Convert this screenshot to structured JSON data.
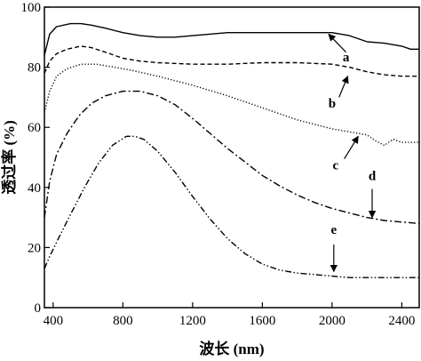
{
  "chart_data": {
    "type": "line",
    "title": "",
    "xlabel": "波长 (nm)",
    "ylabel": "透过率 (%)",
    "xlim": [
      350,
      2500
    ],
    "ylim": [
      0,
      100
    ],
    "x_ticks": [
      400,
      800,
      1200,
      1600,
      2000,
      2400
    ],
    "y_ticks": [
      0,
      20,
      40,
      60,
      80,
      100
    ],
    "x_tick_labels": [
      "400",
      "800",
      "1200",
      "1600",
      "2000",
      "2400"
    ],
    "y_tick_labels": [
      "0",
      "20",
      "40",
      "60",
      "80",
      "100"
    ],
    "grid": false,
    "legend": "none",
    "series": [
      {
        "name": "a",
        "style": "solid",
        "x": [
          350,
          380,
          420,
          500,
          560,
          620,
          700,
          800,
          900,
          1000,
          1100,
          1200,
          1400,
          1600,
          1800,
          2000,
          2100,
          2200,
          2300,
          2400,
          2450,
          2500
        ],
        "y": [
          84,
          91,
          93.5,
          94.5,
          94.5,
          94,
          93,
          91.5,
          90.5,
          90,
          90,
          90.5,
          91.5,
          91.5,
          91.5,
          91.5,
          90.5,
          88.5,
          88,
          87,
          86,
          86
        ]
      },
      {
        "name": "b",
        "style": "dashed",
        "x": [
          350,
          380,
          420,
          480,
          560,
          620,
          700,
          800,
          900,
          1000,
          1200,
          1400,
          1600,
          1800,
          2000,
          2100,
          2200,
          2300,
          2400,
          2500
        ],
        "y": [
          78,
          82,
          84.5,
          86,
          87,
          86.5,
          85,
          83,
          82,
          81.5,
          81,
          81,
          81.5,
          81.5,
          81,
          80,
          78.5,
          77.5,
          77,
          77
        ]
      },
      {
        "name": "c",
        "style": "dotted",
        "x": [
          350,
          380,
          420,
          480,
          560,
          650,
          750,
          850,
          1000,
          1200,
          1400,
          1600,
          1800,
          1900,
          2000,
          2100,
          2200,
          2250,
          2300,
          2350,
          2400,
          2500
        ],
        "y": [
          65,
          72,
          77,
          79.5,
          81,
          81,
          80,
          79,
          77,
          74,
          70.5,
          66.5,
          62.5,
          61,
          59.5,
          58.5,
          57.5,
          55.5,
          54,
          56,
          55,
          55
        ]
      },
      {
        "name": "d",
        "style": "dash-dot",
        "x": [
          350,
          380,
          420,
          480,
          550,
          620,
          700,
          800,
          900,
          1000,
          1100,
          1200,
          1300,
          1400,
          1500,
          1600,
          1700,
          1800,
          1900,
          2000,
          2100,
          2200,
          2300,
          2400,
          2500
        ],
        "y": [
          30,
          42,
          51,
          58,
          64,
          68,
          70.5,
          72,
          72,
          70.5,
          67.5,
          63,
          58,
          53,
          48.5,
          44,
          40.5,
          37.5,
          35,
          33,
          31.5,
          30,
          29,
          28.5,
          28
        ]
      },
      {
        "name": "e",
        "style": "dash-dot-dot",
        "x": [
          350,
          380,
          430,
          500,
          580,
          660,
          740,
          820,
          870,
          920,
          1000,
          1100,
          1200,
          1300,
          1400,
          1500,
          1600,
          1700,
          1800,
          1900,
          2000,
          2100,
          2200,
          2300,
          2400,
          2500
        ],
        "y": [
          13,
          17,
          23,
          31,
          40,
          48,
          54,
          57,
          57,
          56,
          52,
          45,
          37,
          29.5,
          23,
          18,
          14.5,
          12.5,
          11.5,
          11,
          10.5,
          10,
          10,
          10,
          10,
          10
        ]
      }
    ],
    "annotations": [
      {
        "text": "a",
        "x": 2080,
        "y": 82,
        "arrow_from": [
          2080,
          85
        ],
        "arrow_to": [
          1980,
          91
        ]
      },
      {
        "text": "b",
        "x": 2000,
        "y": 66.5,
        "arrow_from": [
          2040,
          70
        ],
        "arrow_to": [
          2090,
          77
        ]
      },
      {
        "text": "c",
        "x": 2020,
        "y": 46,
        "arrow_from": [
          2070,
          49.5
        ],
        "arrow_to": [
          2150,
          57
        ]
      },
      {
        "text": "d",
        "x": 2230,
        "y": 42.5,
        "arrow_from": [
          2230,
          39.5
        ],
        "arrow_to": [
          2230,
          30
        ]
      },
      {
        "text": "e",
        "x": 2010,
        "y": 24.5,
        "arrow_from": [
          2010,
          21
        ],
        "arrow_to": [
          2010,
          12
        ]
      }
    ]
  }
}
